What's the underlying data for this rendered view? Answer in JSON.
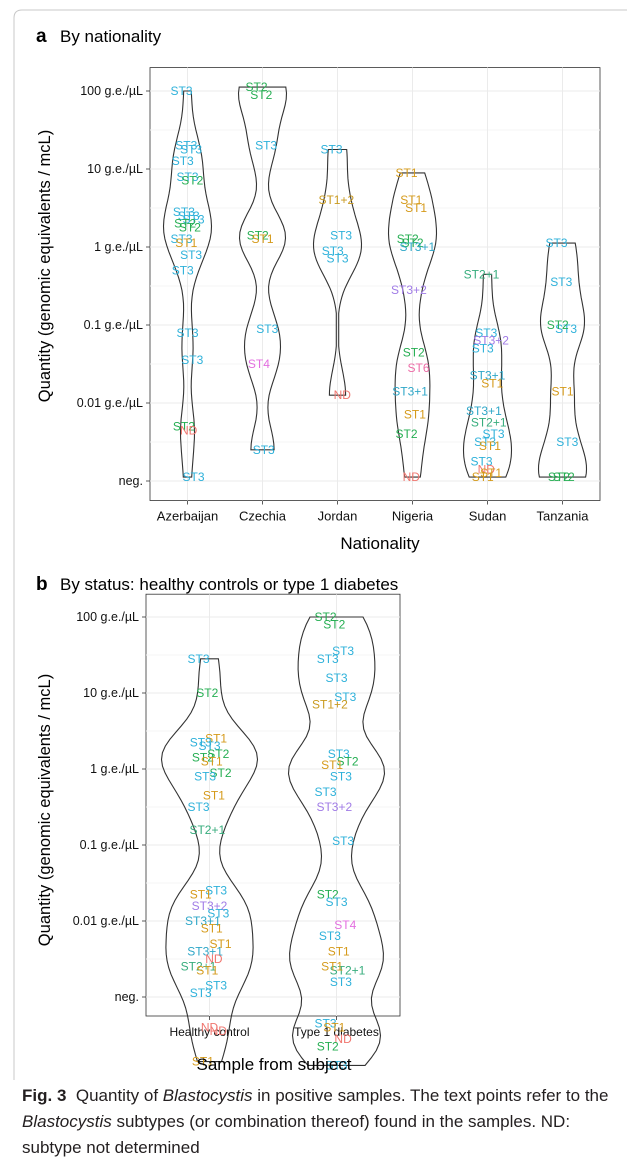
{
  "colors": {
    "ST1": "#d59a1a",
    "ST2": "#25ae52",
    "ST3": "#2eb1da",
    "ST4": "#e36fe0",
    "ST6": "#ec6ba6",
    "ST1+2": "#c99a1f",
    "ST3+1": "#2fa7c8",
    "ST2+1": "#37ad7d",
    "ST3+2": "#a07be6",
    "ND": "#f0766f",
    "grid": "#ebebeb",
    "violin": "#333333"
  },
  "caption": {
    "fig_label": "Fig. 3",
    "part1": "Quantity of ",
    "species1": "Blastocystis",
    "part2": " in positive samples. The text points refer to the ",
    "species2": "Blastocystis",
    "part3": " subtypes (or combination thereof) found in the samples. ND: subtype not determined"
  },
  "chart_data": [
    {
      "type": "violin",
      "panel_letter": "a",
      "title": "By nationality",
      "xlabel": "Nationality",
      "ylabel": "Quantity (genomic equivalents / mcL)",
      "y_scale": "log",
      "y_ticks": [
        {
          "v": -3,
          "label": "neg."
        },
        {
          "v": -2,
          "label": "0.01 g.e./µL"
        },
        {
          "v": -1,
          "label": "0.1 g.e./µL"
        },
        {
          "v": 0,
          "label": "1 g.e./µL"
        },
        {
          "v": 1,
          "label": "10 g.e./µL"
        },
        {
          "v": 2,
          "label": "100 g.e./µL"
        }
      ],
      "categories": [
        "Azerbaijan",
        "Czechia",
        "Jordan",
        "Nigeria",
        "Sudan",
        "Tanzania"
      ],
      "points": [
        [
          [
            "ST3",
            2.0
          ],
          [
            "ST3",
            1.3
          ],
          [
            "ST3",
            1.25
          ],
          [
            "ST3",
            1.1
          ],
          [
            "ST3",
            0.9
          ],
          [
            "ST2",
            0.85
          ],
          [
            "ST3",
            0.45
          ],
          [
            "ST3",
            0.4
          ],
          [
            "ST3",
            0.35
          ],
          [
            "ST2",
            0.3
          ],
          [
            "ST2",
            0.25
          ],
          [
            "ST3",
            0.1
          ],
          [
            "ST1",
            0.05
          ],
          [
            "ST3",
            -0.1
          ],
          [
            "ST3",
            -0.3
          ],
          [
            "ST3",
            -1.1
          ],
          [
            "ST3",
            -1.45
          ],
          [
            "ST2",
            -2.3
          ],
          [
            "ND",
            -2.35
          ],
          [
            "ST3",
            -2.95
          ]
        ],
        [
          [
            "ST2",
            2.05
          ],
          [
            "ST2",
            1.95
          ],
          [
            "ST3",
            1.3
          ],
          [
            "ST2",
            0.15
          ],
          [
            "ST1",
            0.1
          ],
          [
            "ST3",
            -1.05
          ],
          [
            "ST4",
            -1.5
          ],
          [
            "ST3",
            -2.6
          ]
        ],
        [
          [
            "ST3",
            1.25
          ],
          [
            "ST1+2",
            0.6
          ],
          [
            "ST3",
            0.15
          ],
          [
            "ST3",
            -0.05
          ],
          [
            "ST3",
            -0.15
          ],
          [
            "ND",
            -1.9
          ]
        ],
        [
          [
            "ST1",
            0.95
          ],
          [
            "ST1",
            0.6
          ],
          [
            "ST1",
            0.5
          ],
          [
            "ST2",
            0.1
          ],
          [
            "ST2",
            0.05
          ],
          [
            "ST3+1",
            0.0
          ],
          [
            "ST3+2",
            -0.55
          ],
          [
            "ST2",
            -1.35
          ],
          [
            "ST6",
            -1.55
          ],
          [
            "ST3+1",
            -1.85
          ],
          [
            "ST1",
            -2.15
          ],
          [
            "ST2",
            -2.4
          ],
          [
            "ND",
            -2.95
          ]
        ],
        [
          [
            "ST2+1",
            -0.35
          ],
          [
            "ST3",
            -1.1
          ],
          [
            "ST3+2",
            -1.2
          ],
          [
            "ST3",
            -1.3
          ],
          [
            "ST3+1",
            -1.65
          ],
          [
            "ST1",
            -1.75
          ],
          [
            "ST3+1",
            -2.1
          ],
          [
            "ST2+1",
            -2.25
          ],
          [
            "ST3",
            -2.4
          ],
          [
            "ST3",
            -2.5
          ],
          [
            "ST1",
            -2.55
          ],
          [
            "ST3",
            -2.75
          ],
          [
            "ND",
            -2.85
          ],
          [
            "ST1",
            -2.9
          ],
          [
            "ST1",
            -2.95
          ]
        ],
        [
          [
            "ST3",
            0.05
          ],
          [
            "ST3",
            -0.45
          ],
          [
            "ST3",
            -1.05
          ],
          [
            "ST2",
            -1.0
          ],
          [
            "ST1",
            -1.85
          ],
          [
            "ST3",
            -2.5
          ],
          [
            "ST2",
            -2.95
          ],
          [
            "ST2",
            -2.95
          ]
        ]
      ]
    },
    {
      "type": "violin",
      "panel_letter": "b",
      "title": "By status: healthy controls or type 1 diabetes",
      "xlabel": "Sample from subject",
      "ylabel": "Quantity (genomic equivalents / mcL)",
      "y_scale": "log",
      "y_ticks": [
        {
          "v": -3,
          "label": "neg."
        },
        {
          "v": -2,
          "label": "0.01 g.e./µL"
        },
        {
          "v": -1,
          "label": "0.1 g.e./µL"
        },
        {
          "v": 0,
          "label": "1 g.e./µL"
        },
        {
          "v": 1,
          "label": "10 g.e./µL"
        },
        {
          "v": 2,
          "label": "100 g.e./µL"
        }
      ],
      "categories": [
        "Healthy control",
        "Type 1 diabetes"
      ],
      "points": [
        [
          [
            "ST3",
            1.45
          ],
          [
            "ST2",
            1.0
          ],
          [
            "ST1",
            0.4
          ],
          [
            "ST3",
            0.35
          ],
          [
            "ST3",
            0.3
          ],
          [
            "ST2",
            0.2
          ],
          [
            "ST2",
            0.15
          ],
          [
            "ST1",
            0.1
          ],
          [
            "ST2",
            -0.05
          ],
          [
            "ST3",
            -0.1
          ],
          [
            "ST1",
            -0.35
          ],
          [
            "ST3",
            -0.5
          ],
          [
            "ST2+1",
            -0.8
          ],
          [
            "ST3",
            -1.6
          ],
          [
            "ST1",
            -1.65
          ],
          [
            "ST3+2",
            -1.8
          ],
          [
            "ST3",
            -1.9
          ],
          [
            "ST3+1",
            -2.0
          ],
          [
            "ST1",
            -2.1
          ],
          [
            "ST1",
            -2.3
          ],
          [
            "ST3+1",
            -2.4
          ],
          [
            "ND",
            -2.5
          ],
          [
            "ST2+1",
            -2.6
          ],
          [
            "ST1",
            -2.65
          ],
          [
            "ST3",
            -2.85
          ],
          [
            "ST3",
            -2.95
          ],
          [
            "ND",
            -3.4
          ],
          [
            "ND",
            -3.45
          ],
          [
            "ST1",
            -3.85
          ]
        ],
        [
          [
            "ST2",
            2.0
          ],
          [
            "ST2",
            1.9
          ],
          [
            "ST3",
            1.55
          ],
          [
            "ST3",
            1.45
          ],
          [
            "ST3",
            1.2
          ],
          [
            "ST3",
            0.95
          ],
          [
            "ST1+2",
            0.85
          ],
          [
            "ST3",
            0.2
          ],
          [
            "ST2",
            0.1
          ],
          [
            "ST1",
            0.05
          ],
          [
            "ST3",
            -0.1
          ],
          [
            "ST3",
            -0.3
          ],
          [
            "ST3+2",
            -0.5
          ],
          [
            "ST3",
            -0.95
          ],
          [
            "ST2",
            -1.65
          ],
          [
            "ST3",
            -1.75
          ],
          [
            "ST4",
            -2.05
          ],
          [
            "ST3",
            -2.2
          ],
          [
            "ST1",
            -2.4
          ],
          [
            "ST2+1",
            -2.65
          ],
          [
            "ST1",
            -2.6
          ],
          [
            "ST3",
            -2.8
          ],
          [
            "ST3",
            -3.35
          ],
          [
            "ST1",
            -3.4
          ],
          [
            "ND",
            -3.55
          ],
          [
            "ST2",
            -3.65
          ],
          [
            "ST3",
            -3.9
          ]
        ]
      ]
    }
  ]
}
